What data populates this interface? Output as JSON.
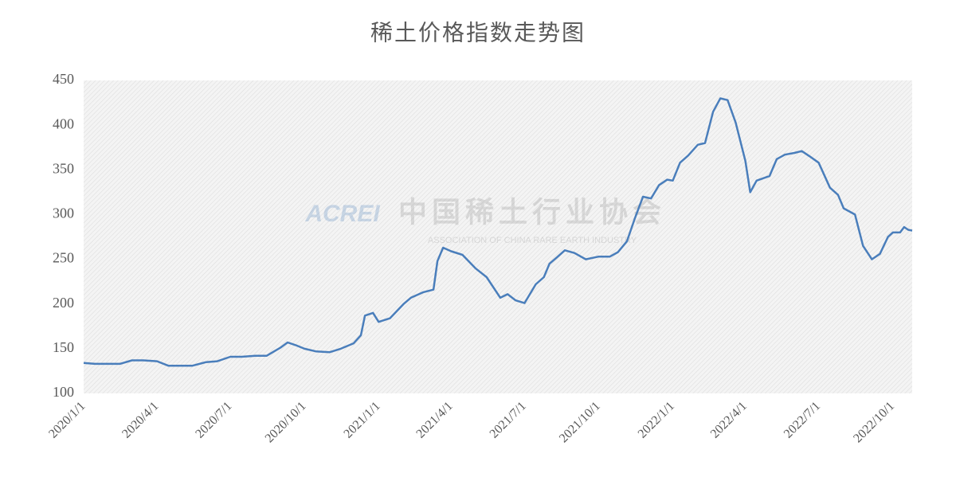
{
  "chart_data": {
    "type": "line",
    "title": "稀土价格指数走势图",
    "watermark": {
      "logo": "ACREI",
      "name": "中国稀土行业协会",
      "subtitle": "ASSOCIATION OF CHINA RARE EARTH INDUSTRY"
    },
    "x": [
      "2020/1/1",
      "2020/1/15",
      "2020/2/1",
      "2020/2/15",
      "2020/3/1",
      "2020/3/15",
      "2020/4/1",
      "2020/4/15",
      "2020/5/1",
      "2020/5/15",
      "2020/6/1",
      "2020/6/15",
      "2020/7/1",
      "2020/7/15",
      "2020/8/1",
      "2020/8/15",
      "2020/9/1",
      "2020/9/10",
      "2020/9/20",
      "2020/10/1",
      "2020/10/15",
      "2020/11/1",
      "2020/11/15",
      "2020/12/1",
      "2020/12/10",
      "2020/12/15",
      "2020/12/25",
      "2021/1/1",
      "2021/1/15",
      "2021/2/1",
      "2021/2/10",
      "2021/2/25",
      "2021/3/10",
      "2021/3/15",
      "2021/3/22",
      "2021/4/1",
      "2021/4/15",
      "2021/5/1",
      "2021/5/15",
      "2021/6/1",
      "2021/6/10",
      "2021/6/20",
      "2021/7/1",
      "2021/7/15",
      "2021/7/25",
      "2021/8/1",
      "2021/8/10",
      "2021/8/20",
      "2021/9/1",
      "2021/9/15",
      "2021/10/1",
      "2021/10/15",
      "2021/10/25",
      "2021/11/5",
      "2021/11/15",
      "2021/11/25",
      "2021/12/5",
      "2021/12/15",
      "2021/12/25",
      "2022/1/1",
      "2022/1/10",
      "2022/1/20",
      "2022/2/1",
      "2022/2/10",
      "2022/2/20",
      "2022/3/1",
      "2022/3/10",
      "2022/3/20",
      "2022/4/1",
      "2022/4/7",
      "2022/4/15",
      "2022/5/1",
      "2022/5/10",
      "2022/5/20",
      "2022/6/1",
      "2022/6/10",
      "2022/6/20",
      "2022/7/1",
      "2022/7/15",
      "2022/7/25",
      "2022/8/1",
      "2022/8/15",
      "2022/8/25",
      "2022/9/5",
      "2022/9/15",
      "2022/9/25",
      "2022/10/1",
      "2022/10/10",
      "2022/10/15",
      "2022/10/20",
      "2022/10/25"
    ],
    "series": [
      {
        "name": "稀土价格指数",
        "color": "#4a7ebb",
        "values": [
          134,
          133,
          133,
          133,
          137,
          137,
          136,
          131,
          131,
          131,
          135,
          136,
          141,
          141,
          142,
          142,
          151,
          157,
          154,
          150,
          147,
          146,
          150,
          156,
          165,
          187,
          190,
          180,
          184,
          200,
          207,
          213,
          216,
          248,
          263,
          259,
          255,
          240,
          230,
          207,
          211,
          204,
          201,
          222,
          230,
          245,
          252,
          260,
          257,
          250,
          253,
          253,
          258,
          270,
          296,
          320,
          318,
          333,
          339,
          338,
          358,
          366,
          378,
          380,
          415,
          430,
          428,
          403,
          360,
          325,
          338,
          343,
          362,
          367,
          369,
          371,
          365,
          358,
          330,
          322,
          307,
          300,
          265,
          250,
          256,
          275,
          280,
          280,
          286,
          283,
          282
        ]
      }
    ],
    "xlim": [
      "2020/1/1",
      "2022/10/25"
    ],
    "xticks": [
      "2020/1/1",
      "2020/4/1",
      "2020/7/1",
      "2020/10/1",
      "2021/1/1",
      "2021/4/1",
      "2021/7/1",
      "2021/10/1",
      "2022/1/1",
      "2022/4/1",
      "2022/7/1",
      "2022/10/1"
    ],
    "ylim": [
      100,
      450
    ],
    "yticks": [
      100,
      150,
      200,
      250,
      300,
      350,
      400,
      450
    ],
    "grid": false
  }
}
